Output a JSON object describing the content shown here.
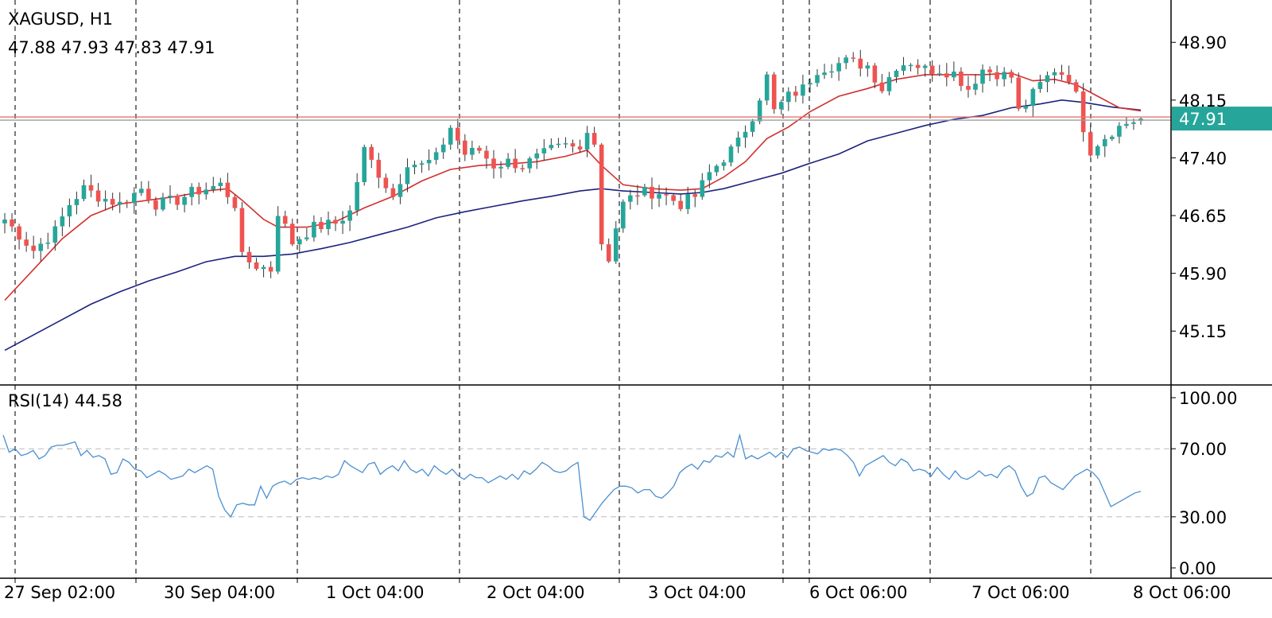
{
  "header": {
    "symbol_line": "XAGUSD, H1",
    "ohlc_line": "47.88 47.93 47.83 47.91",
    "rsi_line": "RSI(14) 44.58"
  },
  "colors": {
    "up": "#26a69a",
    "down": "#ef5350",
    "ma_fast": "#d32f2f",
    "ma_slow": "#1a237e",
    "rsi": "#4a8fd0",
    "price_label_bg": "#26a69a",
    "grid": "#dddddd",
    "separator": "#000000"
  },
  "chart_data": [
    {
      "type": "candlestick",
      "symbol": "XAGUSD",
      "timeframe": "H1",
      "ohlc_last": {
        "open": 47.88,
        "high": 47.93,
        "low": 47.83,
        "close": 47.91
      },
      "last_price_label": "47.91",
      "ylim": [
        44.45,
        49.45
      ],
      "y_ticks": [
        "48.90",
        "48.15",
        "47.40",
        "46.65",
        "45.90",
        "45.15"
      ],
      "x_ticks": [
        "27 Sep 02:00",
        "30 Sep 04:00",
        "1 Oct 04:00",
        "2 Oct 04:00",
        "3 Oct 04:00",
        "6 Oct 06:00",
        "7 Oct 06:00",
        "8 Oct 06:00"
      ],
      "grid": true,
      "close_path": [
        [
          0,
          46.6
        ],
        [
          4,
          46.2
        ],
        [
          7,
          46.45
        ],
        [
          9,
          46.8
        ],
        [
          11,
          47.0
        ],
        [
          13,
          46.9
        ],
        [
          16,
          46.8
        ],
        [
          19,
          47.0
        ],
        [
          21,
          46.8
        ],
        [
          24,
          46.85
        ],
        [
          26,
          46.95
        ],
        [
          28,
          47.0
        ],
        [
          30,
          47.05
        ],
        [
          32,
          46.8
        ],
        [
          33,
          46.1
        ],
        [
          35,
          46.0
        ],
        [
          37,
          45.95
        ],
        [
          38,
          46.7
        ],
        [
          40,
          46.3
        ],
        [
          43,
          46.5
        ],
        [
          46,
          46.55
        ],
        [
          48,
          46.7
        ],
        [
          50,
          47.5
        ],
        [
          52,
          47.2
        ],
        [
          54,
          46.9
        ],
        [
          56,
          47.35
        ],
        [
          58,
          47.3
        ],
        [
          60,
          47.4
        ],
        [
          62,
          47.8
        ],
        [
          64,
          47.45
        ],
        [
          66,
          47.5
        ],
        [
          68,
          47.3
        ],
        [
          70,
          47.35
        ],
        [
          72,
          47.3
        ],
        [
          74,
          47.4
        ],
        [
          76,
          47.5
        ],
        [
          78,
          47.55
        ],
        [
          80,
          47.5
        ],
        [
          81,
          47.8
        ],
        [
          82,
          47.6
        ],
        [
          83,
          46.3
        ],
        [
          84,
          46.1
        ],
        [
          85,
          46.5
        ],
        [
          86,
          46.8
        ],
        [
          88,
          46.95
        ],
        [
          91,
          46.95
        ],
        [
          94,
          46.8
        ],
        [
          96,
          46.9
        ],
        [
          98,
          47.2
        ],
        [
          100,
          47.4
        ],
        [
          102,
          47.6
        ],
        [
          104,
          47.95
        ],
        [
          106,
          48.45
        ],
        [
          107,
          48.0
        ],
        [
          109,
          48.2
        ],
        [
          111,
          48.3
        ],
        [
          113,
          48.55
        ],
        [
          115,
          48.6
        ],
        [
          117,
          48.65
        ],
        [
          120,
          48.6
        ],
        [
          122,
          48.3
        ],
        [
          124,
          48.6
        ],
        [
          126,
          48.65
        ],
        [
          128,
          48.55
        ],
        [
          130,
          48.55
        ],
        [
          132,
          48.5
        ],
        [
          134,
          48.3
        ],
        [
          136,
          48.55
        ],
        [
          138,
          48.5
        ],
        [
          140,
          48.45
        ],
        [
          141,
          48.0
        ],
        [
          142,
          48.1
        ],
        [
          144,
          48.35
        ],
        [
          146,
          48.55
        ],
        [
          148,
          48.45
        ],
        [
          149,
          48.2
        ],
        [
          150,
          47.8
        ],
        [
          151,
          47.5
        ],
        [
          152,
          47.6
        ],
        [
          154,
          47.75
        ],
        [
          156,
          47.85
        ],
        [
          158,
          47.91
        ]
      ],
      "ma_fast": [
        [
          0,
          45.55
        ],
        [
          4,
          45.95
        ],
        [
          8,
          46.35
        ],
        [
          12,
          46.65
        ],
        [
          16,
          46.8
        ],
        [
          20,
          46.85
        ],
        [
          24,
          46.9
        ],
        [
          28,
          46.97
        ],
        [
          31,
          47.0
        ],
        [
          33,
          46.85
        ],
        [
          36,
          46.6
        ],
        [
          38,
          46.5
        ],
        [
          42,
          46.5
        ],
        [
          46,
          46.57
        ],
        [
          50,
          46.75
        ],
        [
          54,
          46.9
        ],
        [
          58,
          47.1
        ],
        [
          62,
          47.25
        ],
        [
          66,
          47.3
        ],
        [
          70,
          47.32
        ],
        [
          74,
          47.35
        ],
        [
          78,
          47.42
        ],
        [
          81,
          47.5
        ],
        [
          83,
          47.3
        ],
        [
          86,
          47.05
        ],
        [
          90,
          47.0
        ],
        [
          94,
          46.98
        ],
        [
          97,
          47.0
        ],
        [
          100,
          47.15
        ],
        [
          103,
          47.35
        ],
        [
          106,
          47.65
        ],
        [
          109,
          47.8
        ],
        [
          112,
          48.0
        ],
        [
          116,
          48.2
        ],
        [
          120,
          48.3
        ],
        [
          124,
          48.42
        ],
        [
          128,
          48.48
        ],
        [
          132,
          48.48
        ],
        [
          136,
          48.48
        ],
        [
          140,
          48.5
        ],
        [
          143,
          48.4
        ],
        [
          146,
          48.42
        ],
        [
          149,
          48.35
        ],
        [
          152,
          48.2
        ],
        [
          155,
          48.05
        ],
        [
          158,
          48.01
        ]
      ],
      "ma_slow": [
        [
          0,
          44.9
        ],
        [
          4,
          45.1
        ],
        [
          8,
          45.3
        ],
        [
          12,
          45.5
        ],
        [
          16,
          45.66
        ],
        [
          20,
          45.8
        ],
        [
          24,
          45.92
        ],
        [
          28,
          46.05
        ],
        [
          32,
          46.12
        ],
        [
          36,
          46.12
        ],
        [
          40,
          46.15
        ],
        [
          44,
          46.22
        ],
        [
          48,
          46.3
        ],
        [
          52,
          46.4
        ],
        [
          56,
          46.5
        ],
        [
          60,
          46.62
        ],
        [
          64,
          46.7
        ],
        [
          68,
          46.77
        ],
        [
          72,
          46.84
        ],
        [
          76,
          46.9
        ],
        [
          80,
          46.97
        ],
        [
          83,
          47.0
        ],
        [
          86,
          46.97
        ],
        [
          90,
          46.95
        ],
        [
          94,
          46.93
        ],
        [
          97,
          46.95
        ],
        [
          100,
          47.0
        ],
        [
          104,
          47.1
        ],
        [
          108,
          47.2
        ],
        [
          112,
          47.33
        ],
        [
          116,
          47.45
        ],
        [
          120,
          47.62
        ],
        [
          124,
          47.72
        ],
        [
          128,
          47.82
        ],
        [
          132,
          47.9
        ],
        [
          136,
          47.95
        ],
        [
          140,
          48.05
        ],
        [
          144,
          48.1
        ],
        [
          147,
          48.15
        ],
        [
          150,
          48.12
        ],
        [
          154,
          48.06
        ],
        [
          158,
          48.02
        ]
      ]
    },
    {
      "type": "line",
      "name": "RSI(14)",
      "last_value": 44.58,
      "ylim": [
        0,
        100
      ],
      "y_ticks": [
        "100.00",
        "70.00",
        "30.00",
        "0.00"
      ],
      "levels": [
        70,
        30
      ],
      "values": [
        [
          0,
          78
        ],
        [
          1,
          68
        ],
        [
          2,
          70
        ],
        [
          3,
          66
        ],
        [
          4,
          67
        ],
        [
          5,
          69
        ],
        [
          6,
          64
        ],
        [
          7,
          66
        ],
        [
          8,
          71
        ],
        [
          9,
          72
        ],
        [
          10,
          72
        ],
        [
          11,
          73
        ],
        [
          12,
          74
        ],
        [
          13,
          66
        ],
        [
          14,
          69
        ],
        [
          15,
          65
        ],
        [
          16,
          66
        ],
        [
          17,
          64
        ],
        [
          18,
          55
        ],
        [
          19,
          56
        ],
        [
          20,
          64
        ],
        [
          21,
          62
        ],
        [
          22,
          58
        ],
        [
          23,
          57
        ],
        [
          24,
          53
        ],
        [
          25,
          55
        ],
        [
          26,
          57
        ],
        [
          27,
          55
        ],
        [
          28,
          52
        ],
        [
          29,
          53
        ],
        [
          30,
          54
        ],
        [
          31,
          58
        ],
        [
          32,
          56
        ],
        [
          33,
          58
        ],
        [
          34,
          60
        ],
        [
          35,
          58
        ],
        [
          36,
          42
        ],
        [
          37,
          34
        ],
        [
          38,
          30
        ],
        [
          39,
          37
        ],
        [
          40,
          38
        ],
        [
          41,
          37
        ],
        [
          42,
          37
        ],
        [
          43,
          48
        ],
        [
          44,
          41
        ],
        [
          45,
          48
        ],
        [
          46,
          50
        ],
        [
          47,
          51
        ],
        [
          48,
          49
        ],
        [
          49,
          52
        ],
        [
          50,
          53
        ],
        [
          51,
          52
        ],
        [
          52,
          53
        ],
        [
          53,
          52
        ],
        [
          54,
          54
        ],
        [
          55,
          53
        ],
        [
          56,
          55
        ],
        [
          57,
          63
        ],
        [
          58,
          60
        ],
        [
          59,
          58
        ],
        [
          60,
          56
        ],
        [
          61,
          61
        ],
        [
          62,
          62
        ],
        [
          63,
          55
        ],
        [
          64,
          58
        ],
        [
          65,
          60
        ],
        [
          66,
          57
        ],
        [
          67,
          63
        ],
        [
          68,
          58
        ],
        [
          69,
          56
        ],
        [
          70,
          58
        ],
        [
          71,
          54
        ],
        [
          72,
          60
        ],
        [
          73,
          57
        ],
        [
          74,
          55
        ],
        [
          75,
          58
        ],
        [
          76,
          54
        ],
        [
          77,
          52
        ],
        [
          78,
          55
        ],
        [
          79,
          53
        ],
        [
          80,
          53
        ],
        [
          81,
          50
        ],
        [
          82,
          52
        ],
        [
          83,
          54
        ],
        [
          84,
          52
        ],
        [
          85,
          55
        ],
        [
          86,
          52
        ],
        [
          87,
          57
        ],
        [
          88,
          55
        ],
        [
          89,
          58
        ],
        [
          90,
          62
        ],
        [
          91,
          60
        ],
        [
          92,
          57
        ],
        [
          93,
          56
        ],
        [
          94,
          57
        ],
        [
          95,
          60
        ],
        [
          96,
          62
        ],
        [
          97,
          30
        ],
        [
          98,
          28
        ],
        [
          99,
          33
        ],
        [
          100,
          38
        ],
        [
          101,
          42
        ],
        [
          102,
          46
        ],
        [
          103,
          48
        ],
        [
          104,
          48
        ],
        [
          105,
          47
        ],
        [
          106,
          44
        ],
        [
          107,
          46
        ],
        [
          108,
          46
        ],
        [
          109,
          42
        ],
        [
          110,
          41
        ],
        [
          111,
          44
        ],
        [
          112,
          48
        ],
        [
          113,
          56
        ],
        [
          114,
          59
        ],
        [
          115,
          61
        ],
        [
          116,
          58
        ],
        [
          117,
          63
        ],
        [
          118,
          62
        ],
        [
          119,
          66
        ],
        [
          120,
          65
        ],
        [
          121,
          68
        ],
        [
          122,
          65
        ],
        [
          123,
          78
        ],
        [
          124,
          64
        ],
        [
          125,
          66
        ],
        [
          126,
          64
        ],
        [
          127,
          66
        ],
        [
          128,
          68
        ],
        [
          129,
          65
        ],
        [
          130,
          68
        ],
        [
          131,
          65
        ],
        [
          132,
          70
        ],
        [
          133,
          71
        ],
        [
          134,
          69
        ],
        [
          135,
          68
        ],
        [
          136,
          67
        ],
        [
          137,
          70
        ],
        [
          138,
          69
        ],
        [
          139,
          70
        ],
        [
          140,
          69
        ],
        [
          141,
          66
        ],
        [
          142,
          62
        ],
        [
          143,
          54
        ],
        [
          144,
          60
        ],
        [
          145,
          62
        ],
        [
          146,
          64
        ],
        [
          147,
          66
        ],
        [
          148,
          62
        ],
        [
          149,
          60
        ],
        [
          150,
          64
        ],
        [
          151,
          62
        ],
        [
          152,
          57
        ],
        [
          153,
          58
        ],
        [
          154,
          57
        ],
        [
          155,
          54
        ],
        [
          156,
          59
        ],
        [
          157,
          55
        ],
        [
          158,
          52
        ],
        [
          159,
          57
        ],
        [
          160,
          53
        ],
        [
          161,
          52
        ],
        [
          162,
          54
        ],
        [
          163,
          57
        ],
        [
          164,
          54
        ],
        [
          165,
          55
        ],
        [
          166,
          53
        ],
        [
          167,
          58
        ],
        [
          168,
          60
        ],
        [
          169,
          57
        ],
        [
          170,
          48
        ],
        [
          171,
          42
        ],
        [
          172,
          44
        ],
        [
          173,
          53
        ],
        [
          174,
          54
        ],
        [
          175,
          50
        ],
        [
          176,
          48
        ],
        [
          177,
          46
        ],
        [
          178,
          50
        ],
        [
          179,
          54
        ],
        [
          180,
          56
        ],
        [
          181,
          58
        ],
        [
          182,
          56
        ],
        [
          183,
          52
        ],
        [
          184,
          44
        ],
        [
          185,
          36
        ],
        [
          186,
          38
        ],
        [
          187,
          40
        ],
        [
          188,
          42
        ],
        [
          189,
          44
        ],
        [
          190,
          45
        ]
      ]
    }
  ]
}
